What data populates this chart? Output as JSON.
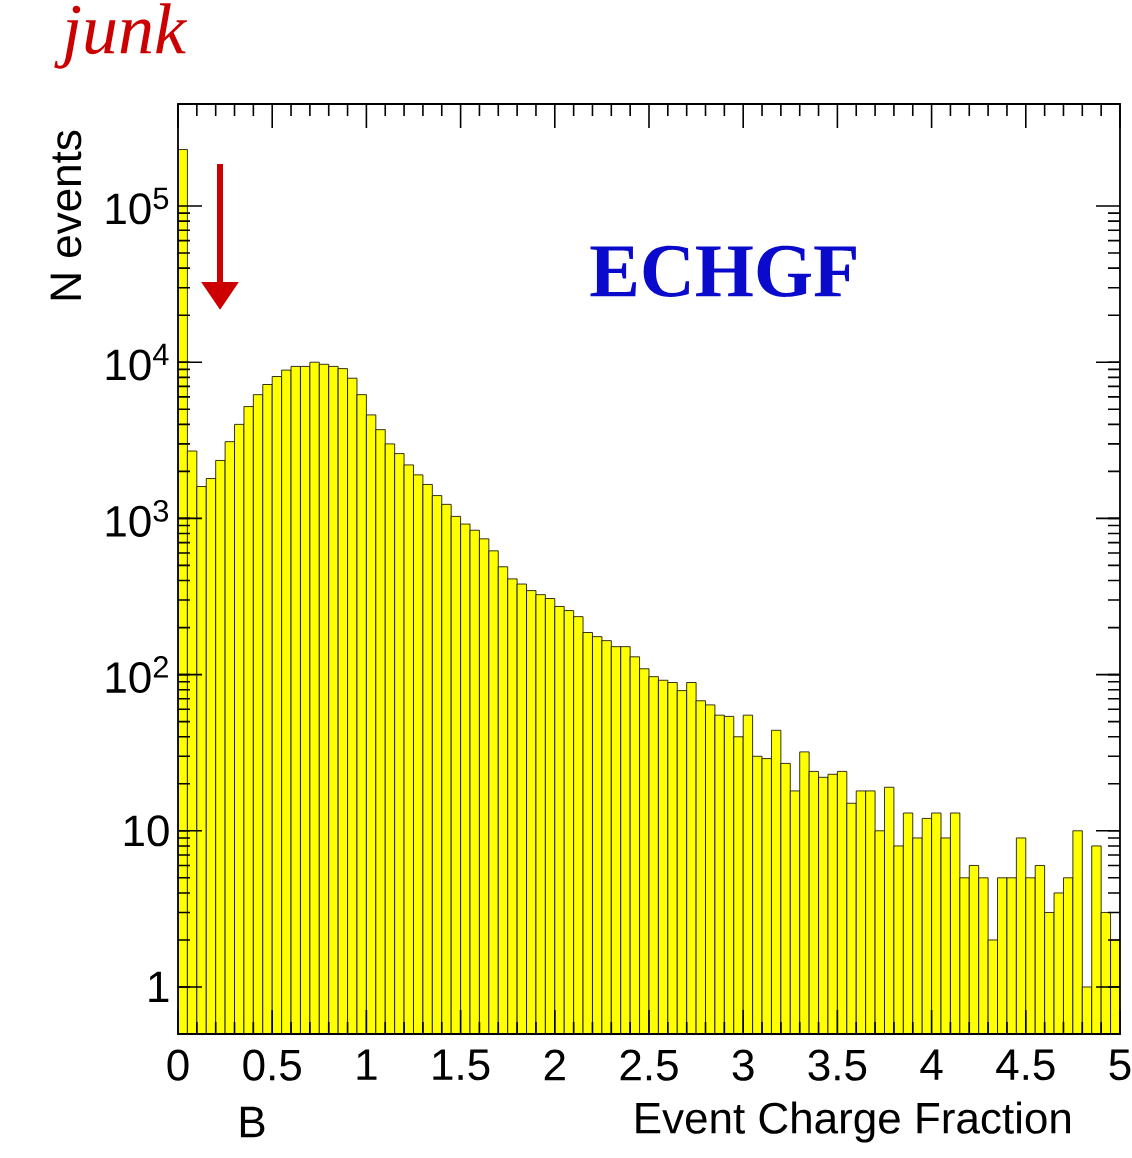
{
  "chart_data": {
    "type": "histogram",
    "title": "ECHGF",
    "xlabel": "Event Charge Fraction",
    "ylabel": "N events",
    "annotations": [
      "junk",
      "B"
    ],
    "bins": [
      0,
      0.05,
      0.1,
      0.15,
      0.2,
      0.25,
      0.3,
      0.35,
      0.4,
      0.45,
      0.5,
      0.55,
      0.6,
      0.65,
      0.7,
      0.75,
      0.8,
      0.85,
      0.9,
      0.95,
      1,
      1.05,
      1.1,
      1.15,
      1.2,
      1.25,
      1.3,
      1.35,
      1.4,
      1.45,
      1.5,
      1.55,
      1.6,
      1.65,
      1.7,
      1.75,
      1.8,
      1.85,
      1.9,
      1.95,
      2,
      2.05,
      2.1,
      2.15,
      2.2,
      2.25,
      2.3,
      2.35,
      2.4,
      2.45,
      2.5,
      2.55,
      2.6,
      2.65,
      2.7,
      2.75,
      2.8,
      2.85,
      2.9,
      2.95,
      3,
      3.05,
      3.1,
      3.15,
      3.2,
      3.25,
      3.3,
      3.35,
      3.4,
      3.45,
      3.5,
      3.55,
      3.6,
      3.65,
      3.7,
      3.75,
      3.8,
      3.85,
      3.9,
      3.95,
      4,
      4.05,
      4.1,
      4.15,
      4.2,
      4.25,
      4.3,
      4.35,
      4.4,
      4.45,
      4.5,
      4.55,
      4.6,
      4.65,
      4.7,
      4.75,
      4.8,
      4.85,
      4.9,
      4.95,
      5
    ],
    "values": [
      230000,
      2700,
      1600,
      1800,
      2350,
      3100,
      4000,
      5200,
      6200,
      7200,
      8100,
      8900,
      9400,
      9400,
      10000,
      9700,
      9400,
      9100,
      7900,
      6200,
      4600,
      3700,
      3000,
      2600,
      2200,
      1900,
      1650,
      1400,
      1230,
      1030,
      920,
      840,
      740,
      620,
      490,
      410,
      380,
      345,
      325,
      307,
      273,
      257,
      235,
      186,
      175,
      165,
      151,
      151,
      130,
      109,
      97,
      92,
      89,
      79,
      89,
      68,
      64,
      55,
      54,
      40,
      55,
      30,
      29,
      44,
      27,
      18,
      32,
      24,
      22,
      23,
      24,
      15,
      18,
      18,
      10,
      19,
      8,
      13,
      9,
      12,
      13,
      9,
      13,
      5,
      6,
      5,
      2,
      5,
      5,
      9,
      5,
      6,
      3,
      4,
      5,
      10,
      1,
      8,
      3,
      2
    ],
    "color": "#ffff00",
    "xlim": [
      0,
      5
    ],
    "ylim": [
      0.5,
      450000
    ],
    "xticks": [
      0,
      0.5,
      1,
      1.5,
      2,
      2.5,
      3,
      3.5,
      4,
      4.5,
      5
    ],
    "yticks": [
      1,
      10,
      {
        "value": 100,
        "label": "10$^{2}$"
      },
      {
        "value": 1000,
        "label": "10$^{3}$"
      },
      {
        "value": 10000,
        "label": "10$^{4}$"
      },
      {
        "value": 100000,
        "label": "10$^{5}$"
      }
    ],
    "log": "y",
    "grid": false
  }
}
